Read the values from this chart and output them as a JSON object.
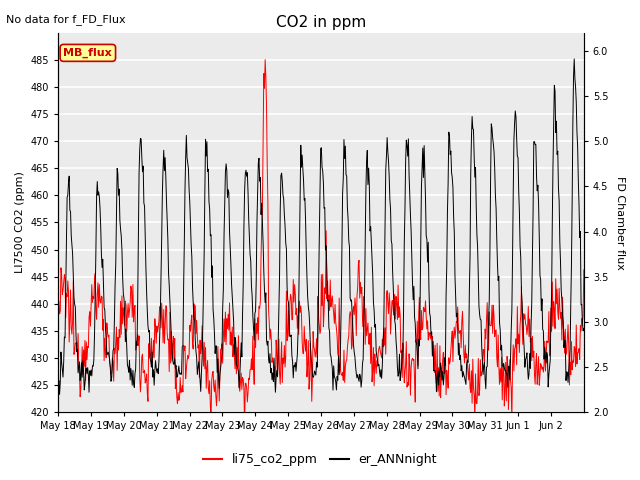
{
  "title": "CO2 in ppm",
  "title_note": "No data for f_FD_Flux",
  "ylabel_left": "LI7500 CO2 (ppm)",
  "ylabel_right": "FD Chamber flux",
  "ylim_left": [
    420,
    490
  ],
  "ylim_right": [
    2.0,
    6.2
  ],
  "yticks_left": [
    420,
    425,
    430,
    435,
    440,
    445,
    450,
    455,
    460,
    465,
    470,
    475,
    480,
    485
  ],
  "yticks_right": [
    2.0,
    2.5,
    3.0,
    3.5,
    4.0,
    4.5,
    5.0,
    5.5,
    6.0
  ],
  "legend_labels": [
    "li75_co2_ppm",
    "er_ANNnight"
  ],
  "legend_colors": [
    "red",
    "black"
  ],
  "mb_flux_box_color": "#ffff99",
  "mb_flux_text_color": "#cc0000",
  "mb_flux_border_color": "#cc0000",
  "line_color_co2": "red",
  "line_color_er": "black",
  "background_color": "#ebebeb",
  "grid_color": "white",
  "n_days": 16,
  "x_labels": [
    "May 18",
    "May 19",
    "May 20",
    "May 21",
    "May 22",
    "May 23",
    "May 24",
    "May 25",
    "May 26",
    "May 27",
    "May 28",
    "May 29",
    "May 30",
    "May 31",
    "Jun 1",
    "Jun 2"
  ]
}
